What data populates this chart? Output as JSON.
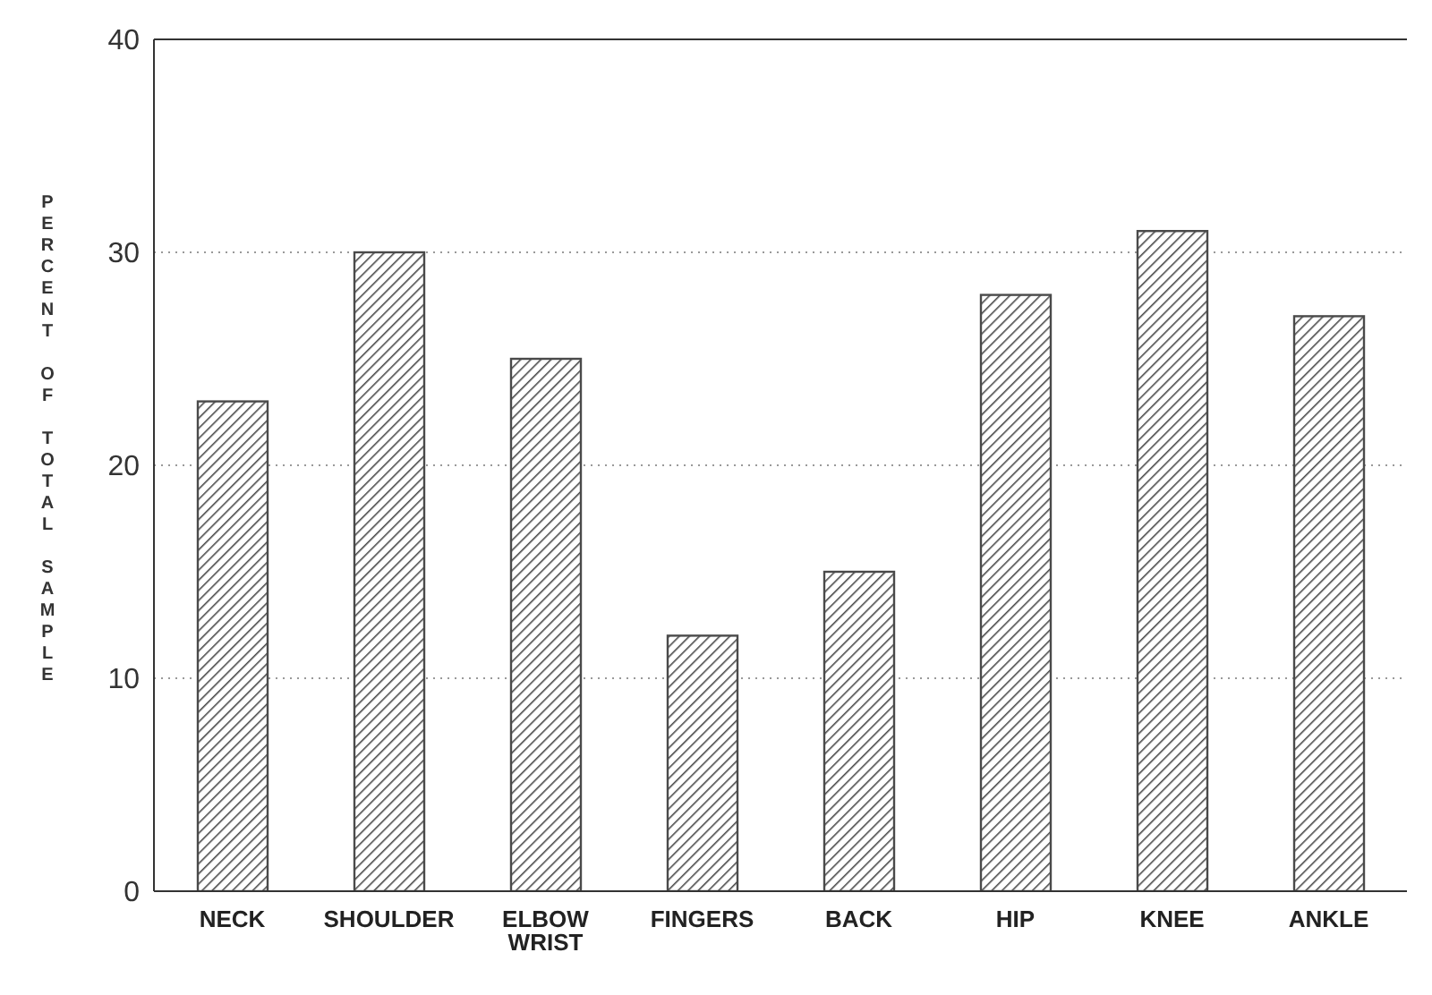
{
  "chart_data": {
    "type": "bar",
    "ylabel": "PERCENT OF TOTAL SAMPLE",
    "categories": [
      "NECK",
      "SHOULDER",
      "ELBOW WRIST",
      "FINGERS",
      "BACK",
      "HIP",
      "KNEE",
      "ANKLE"
    ],
    "values": [
      23,
      30,
      25,
      12,
      15,
      28,
      31,
      27
    ],
    "color": "#4a4a4a",
    "ylim": [
      0,
      40
    ],
    "yticks": [
      0,
      10,
      20,
      30,
      40
    ],
    "grid": "y"
  }
}
